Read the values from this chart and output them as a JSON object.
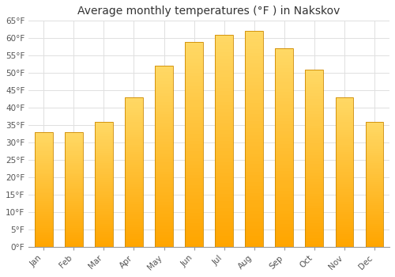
{
  "title": "Average monthly temperatures (°F ) in Nakskov",
  "months": [
    "Jan",
    "Feb",
    "Mar",
    "Apr",
    "May",
    "Jun",
    "Jul",
    "Aug",
    "Sep",
    "Oct",
    "Nov",
    "Dec"
  ],
  "values": [
    33,
    33,
    36,
    43,
    52,
    59,
    61,
    62,
    57,
    51,
    43,
    36
  ],
  "ylim": [
    0,
    65
  ],
  "yticks": [
    0,
    5,
    10,
    15,
    20,
    25,
    30,
    35,
    40,
    45,
    50,
    55,
    60,
    65
  ],
  "bar_color_bottom": "#FFA500",
  "bar_color_top": "#FFD966",
  "bar_edge_color": "#CC8800",
  "background_color": "#FFFFFF",
  "grid_color": "#E0E0E0",
  "title_fontsize": 10,
  "tick_fontsize": 7.5,
  "bar_width": 0.6
}
